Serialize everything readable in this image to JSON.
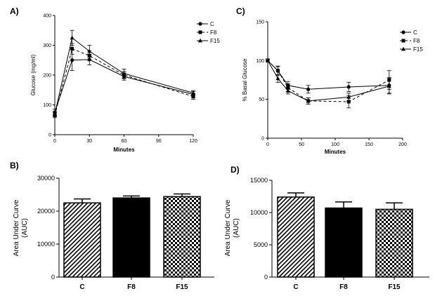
{
  "chart_data": [
    {
      "id": "A",
      "panel_label": "A)",
      "type": "line",
      "xlabel": "Minutes",
      "ylabel": "Glucose (mg/ml)",
      "xlim": [
        0,
        120
      ],
      "ylim": [
        0,
        400
      ],
      "xticks": [
        0,
        30,
        60,
        90,
        120
      ],
      "yticks": [
        0,
        100,
        200,
        300,
        400
      ],
      "x": [
        0,
        15,
        30,
        60,
        120
      ],
      "series": [
        {
          "name": "C",
          "marker": "circle",
          "dash": "solid",
          "values": [
            75,
            250,
            252,
            195,
            135
          ],
          "errors": [
            10,
            35,
            18,
            12,
            10
          ]
        },
        {
          "name": "F8",
          "marker": "square",
          "dash": "dashed",
          "values": [
            65,
            288,
            265,
            200,
            128
          ],
          "errors": [
            8,
            18,
            16,
            12,
            9
          ]
        },
        {
          "name": "F15",
          "marker": "triangle",
          "dash": "solid",
          "values": [
            70,
            325,
            280,
            205,
            140
          ],
          "errors": [
            8,
            25,
            20,
            15,
            8
          ]
        }
      ]
    },
    {
      "id": "C",
      "panel_label": "C)",
      "type": "line",
      "xlabel": "Minutes",
      "ylabel": "% Basal Glucose",
      "xlim": [
        0,
        200
      ],
      "ylim": [
        0,
        150
      ],
      "xticks": [
        0,
        50,
        100,
        150,
        200
      ],
      "yticks": [
        0,
        50,
        100,
        150
      ],
      "x": [
        0,
        15,
        30,
        60,
        120,
        180
      ],
      "series": [
        {
          "name": "C",
          "marker": "circle",
          "dash": "solid",
          "values": [
            100,
            87,
            68,
            63,
            66,
            68
          ],
          "errors": [
            2,
            6,
            5,
            5,
            6,
            10
          ]
        },
        {
          "name": "F8",
          "marker": "square",
          "dash": "dashed",
          "values": [
            100,
            87,
            65,
            48,
            47,
            75
          ],
          "errors": [
            2,
            5,
            5,
            4,
            8,
            12
          ]
        },
        {
          "name": "F15",
          "marker": "triangle",
          "dash": "solid",
          "values": [
            100,
            77,
            61,
            48,
            53,
            67
          ],
          "errors": [
            2,
            5,
            4,
            4,
            5,
            10
          ]
        }
      ]
    },
    {
      "id": "B",
      "panel_label": "B)",
      "type": "bar",
      "ylabel_lines": [
        "Area Under Curve",
        "(AUC)"
      ],
      "ylim": [
        0,
        30000
      ],
      "yticks": [
        0,
        10000,
        20000,
        30000
      ],
      "categories": [
        "C",
        "F8",
        "F15"
      ],
      "values": [
        22500,
        24000,
        24400
      ],
      "errors": [
        1200,
        600,
        800
      ],
      "patterns": [
        "hatch",
        "solid",
        "checker"
      ]
    },
    {
      "id": "D",
      "panel_label": "D)",
      "type": "bar",
      "ylabel_lines": [
        "Area Under Curve",
        "(AUC)"
      ],
      "ylim": [
        0,
        15000
      ],
      "yticks": [
        0,
        5000,
        10000,
        15000
      ],
      "categories": [
        "C",
        "F8",
        "F15"
      ],
      "values": [
        12400,
        10700,
        10500
      ],
      "errors": [
        650,
        950,
        1000
      ],
      "patterns": [
        "hatch",
        "solid",
        "checker"
      ]
    }
  ]
}
